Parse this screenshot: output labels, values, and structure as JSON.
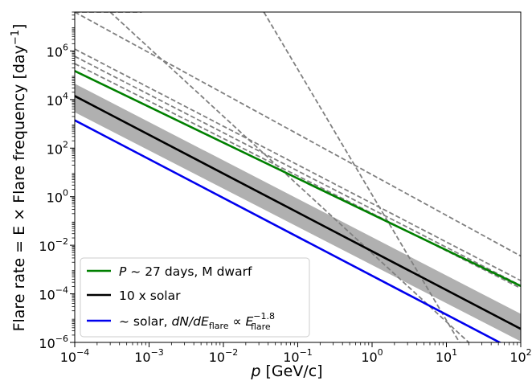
{
  "chart_data": {
    "type": "line",
    "xlabel_var": "p",
    "xlabel_unit": " [GeV/c]",
    "ylabel": "Flare rate = E × Flare frequency [day",
    "ylabel_sup": "−1",
    "ylabel_close": "]",
    "xscale": "log",
    "yscale": "log",
    "xlim": [
      0.0001,
      100
    ],
    "ylim": [
      1e-06,
      40000000
    ],
    "xticks": [
      {
        "value": 0.0001,
        "base": "10",
        "exp": "−4"
      },
      {
        "value": 0.001,
        "base": "10",
        "exp": "−3"
      },
      {
        "value": 0.01,
        "base": "10",
        "exp": "−2"
      },
      {
        "value": 0.1,
        "base": "10",
        "exp": "−1"
      },
      {
        "value": 1,
        "base": "10",
        "exp": "0"
      },
      {
        "value": 10,
        "base": "10",
        "exp": "1"
      },
      {
        "value": 100,
        "base": "10",
        "exp": "2"
      }
    ],
    "yticks": [
      {
        "value": 1e-06,
        "base": "10",
        "exp": "−6"
      },
      {
        "value": 0.0001,
        "base": "10",
        "exp": "−4"
      },
      {
        "value": 0.01,
        "base": "10",
        "exp": "−2"
      },
      {
        "value": 1,
        "base": "10",
        "exp": "0"
      },
      {
        "value": 100,
        "base": "10",
        "exp": "2"
      },
      {
        "value": 10000,
        "base": "10",
        "exp": "4"
      },
      {
        "value": 1000000,
        "base": "10",
        "exp": "6"
      }
    ],
    "band": {
      "color": "#b0b0b0",
      "x": [
        0.0001,
        100
      ],
      "lower": [
        3000,
        1.1e-06
      ],
      "upper": [
        45000,
        1.5e-05
      ]
    },
    "series": [
      {
        "label": "P ~ 27 days, M dwarf",
        "color": "#008000",
        "style": "solid",
        "x": [
          0.0001,
          100
        ],
        "y": [
          150000,
          0.00021
        ]
      },
      {
        "label": "10 x solar",
        "color": "#000000",
        "style": "solid",
        "x": [
          0.0001,
          100
        ],
        "y": [
          14000,
          3.6e-06
        ]
      },
      {
        "label": "~ solar",
        "color": "#0000ee",
        "style": "solid",
        "x": [
          0.0001,
          100
        ],
        "y": [
          1400,
          3.5e-07
        ]
      },
      {
        "color": "#808080",
        "style": "dashed",
        "x": [
          0.0001,
          100
        ],
        "y": [
          40000000,
          0.0036
        ]
      },
      {
        "color": "#808080",
        "style": "dashed",
        "x": [
          0.0001,
          100
        ],
        "y": [
          1200000,
          0.00035
        ]
      },
      {
        "color": "#808080",
        "style": "dashed",
        "x": [
          0.0001,
          100
        ],
        "y": [
          600000,
          0.00022
        ]
      },
      {
        "color": "#808080",
        "style": "dashed",
        "x": [
          0.0001,
          100
        ],
        "y": [
          300000,
          0.00017
        ]
      },
      {
        "color": "#808080",
        "style": "dashed",
        "x": [
          0.0001,
          0.0008
        ],
        "y": [
          40000000,
          40000000
        ]
      },
      {
        "color": "#808080",
        "style": "dashed",
        "x": [
          0.0003,
          20
        ],
        "y": [
          40000000,
          1e-06
        ]
      },
      {
        "color": "#808080",
        "style": "dashed",
        "x": [
          0.035,
          15
        ],
        "y": [
          40000000,
          1e-06
        ]
      }
    ],
    "legend": {
      "position": "lower-left",
      "entries": [
        {
          "color": "#008000",
          "P": "P",
          "rest": " ~ 27 days, M dwarf"
        },
        {
          "color": "#000000",
          "plain": "10 x solar"
        },
        {
          "color": "#0000ee",
          "lead": "~ solar, ",
          "dN": "dN/dE",
          "sub1": "flare",
          "prop": " ∝ ",
          "E": "E",
          "sup": "−1.8",
          "sub2": "flare"
        }
      ]
    }
  }
}
